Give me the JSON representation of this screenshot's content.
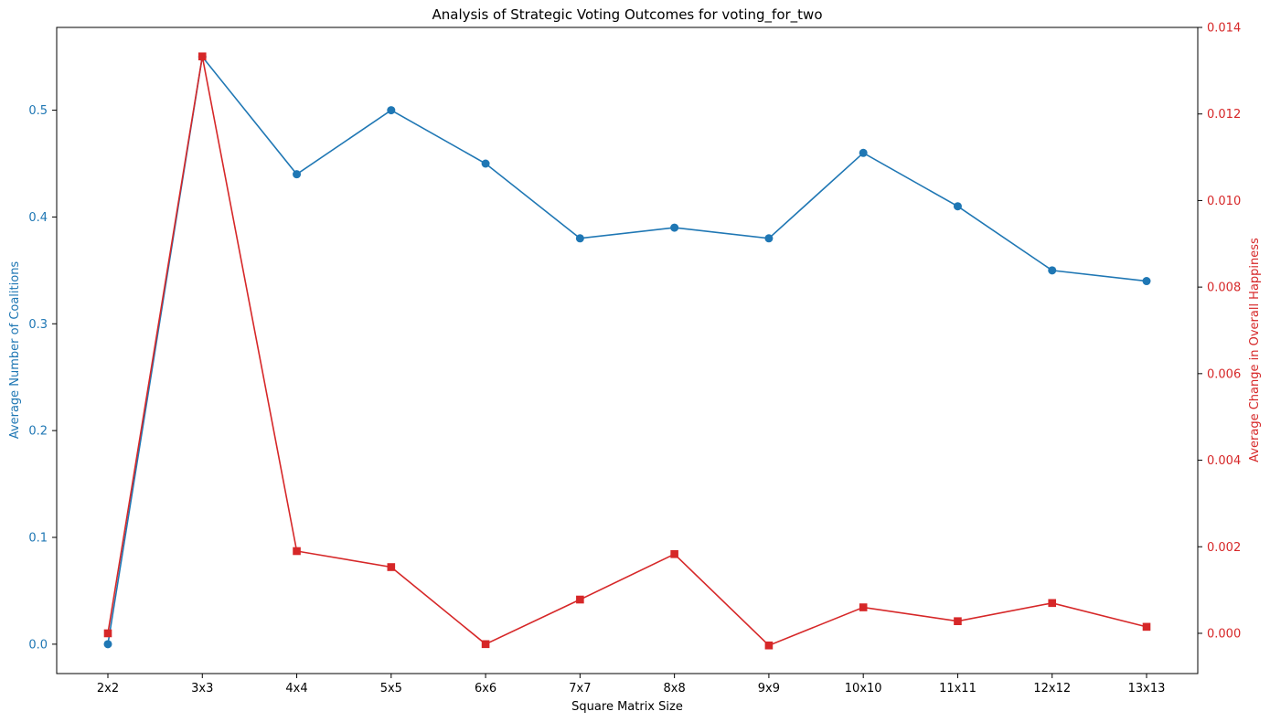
{
  "chart_data": {
    "type": "line",
    "title": "Analysis of Strategic Voting Outcomes for voting_for_two",
    "xlabel": "Square Matrix Size",
    "ylabel_left": "Average Number of Coalitions",
    "ylabel_right": "Average Change in Overall Happiness",
    "categories": [
      "2x2",
      "3x3",
      "4x4",
      "5x5",
      "6x6",
      "7x7",
      "8x8",
      "9x9",
      "10x10",
      "11x11",
      "12x12",
      "13x13"
    ],
    "ylim_left": [
      -0.0275,
      0.5775
    ],
    "ylim_right": [
      -0.00093,
      0.014
    ],
    "yticks_left": [
      "0.0",
      "0.1",
      "0.2",
      "0.3",
      "0.4",
      "0.5"
    ],
    "yticks_right": [
      "0.000",
      "0.002",
      "0.004",
      "0.006",
      "0.008",
      "0.010",
      "0.012",
      "0.014"
    ],
    "grid": false,
    "series": [
      {
        "axis": "left",
        "color": "#1f77b4",
        "marker": "circle",
        "values": [
          0.0,
          0.55,
          0.44,
          0.5,
          0.45,
          0.38,
          0.39,
          0.38,
          0.46,
          0.41,
          0.35,
          0.34
        ]
      },
      {
        "axis": "right",
        "color": "#d62728",
        "marker": "square",
        "values": [
          0.0,
          0.01333,
          0.0019,
          0.00153,
          -0.00025,
          0.00078,
          0.00183,
          -0.00028,
          0.0006,
          0.00028,
          0.0007,
          0.00015
        ]
      }
    ]
  }
}
